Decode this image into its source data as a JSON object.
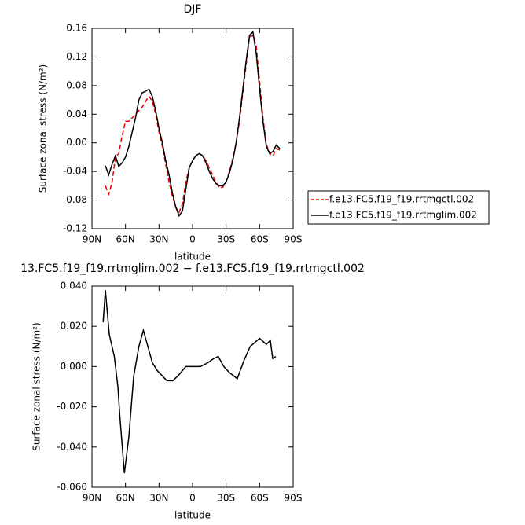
{
  "chart_data": [
    {
      "type": "line",
      "title": "DJF",
      "xlabel": "latitude",
      "ylabel": "Surface zonal stress (N/m²)",
      "xlim": [
        90,
        -90
      ],
      "xticks": [
        {
          "value": 90,
          "label": "90N"
        },
        {
          "value": 60,
          "label": "60N"
        },
        {
          "value": 30,
          "label": "30N"
        },
        0,
        {
          "value": -30,
          "label": "30S"
        },
        {
          "value": -60,
          "label": "60S"
        },
        {
          "value": -90,
          "label": "90S"
        }
      ],
      "ylim": [
        -0.12,
        0.16
      ],
      "yticks": [
        0.16,
        0.12,
        0.08,
        0.04,
        {
          "value": 0,
          "label": "0.00"
        },
        -0.04,
        -0.08,
        -0.12
      ],
      "legend": "outside right",
      "x": [
        78,
        75,
        72,
        69,
        66,
        63,
        60,
        57,
        54,
        51,
        48,
        45,
        42,
        39,
        36,
        33,
        30,
        27,
        24,
        21,
        18,
        15,
        12,
        9,
        6,
        3,
        0,
        -3,
        -6,
        -9,
        -12,
        -15,
        -18,
        -21,
        -24,
        -27,
        -30,
        -33,
        -36,
        -39,
        -42,
        -45,
        -48,
        -51,
        -54,
        -57,
        -60,
        -63,
        -66,
        -69,
        -72,
        -75,
        -78
      ],
      "series": [
        {
          "name": "f.e13.FC5.f19_f19.rrtmgctl.002",
          "color": "#e00000",
          "line_style": "dashed",
          "values": [
            -0.06,
            -0.072,
            -0.055,
            -0.02,
            -0.015,
            0.01,
            0.03,
            0.03,
            0.035,
            0.04,
            0.045,
            0.05,
            0.058,
            0.065,
            0.058,
            0.04,
            0.015,
            -0.005,
            -0.03,
            -0.055,
            -0.075,
            -0.09,
            -0.097,
            -0.085,
            -0.055,
            -0.035,
            -0.025,
            -0.018,
            -0.015,
            -0.018,
            -0.025,
            -0.035,
            -0.045,
            -0.055,
            -0.063,
            -0.062,
            -0.055,
            -0.04,
            -0.022,
            0.0,
            0.03,
            0.07,
            0.11,
            0.148,
            0.15,
            0.135,
            0.085,
            0.035,
            -0.002,
            -0.015,
            -0.018,
            -0.008,
            -0.01
          ]
        },
        {
          "name": "f.e13.FC5.f19_f19.rrtmglim.002",
          "color": "#000000",
          "line_style": "solid",
          "values": [
            -0.032,
            -0.045,
            -0.03,
            -0.018,
            -0.033,
            -0.028,
            -0.02,
            -0.005,
            0.015,
            0.035,
            0.06,
            0.07,
            0.072,
            0.075,
            0.065,
            0.045,
            0.02,
            0.0,
            -0.025,
            -0.045,
            -0.07,
            -0.09,
            -0.102,
            -0.095,
            -0.065,
            -0.035,
            -0.025,
            -0.018,
            -0.015,
            -0.018,
            -0.028,
            -0.04,
            -0.05,
            -0.057,
            -0.06,
            -0.06,
            -0.055,
            -0.042,
            -0.025,
            0.0,
            0.035,
            0.075,
            0.115,
            0.15,
            0.155,
            0.125,
            0.075,
            0.03,
            -0.005,
            -0.015,
            -0.012,
            -0.003,
            -0.008
          ]
        }
      ]
    },
    {
      "type": "line",
      "title": "13.FC5.f19_f19.rrtmglim.002 − f.e13.FC5.f19_f19.rrtmgctl.002",
      "xlabel": "latitude",
      "ylabel": "Surface zonal stress (N/m²)",
      "xlim": [
        90,
        -90
      ],
      "xticks": [
        {
          "value": 90,
          "label": "90N"
        },
        {
          "value": 60,
          "label": "60N"
        },
        {
          "value": 30,
          "label": "30N"
        },
        0,
        {
          "value": -30,
          "label": "30S"
        },
        {
          "value": -60,
          "label": "60S"
        },
        {
          "value": -90,
          "label": "90S"
        }
      ],
      "ylim": [
        -0.06,
        0.04
      ],
      "yticks": [
        {
          "value": 0.04,
          "label": "0.040"
        },
        {
          "value": 0.02,
          "label": "0.020"
        },
        {
          "value": 0,
          "label": "0.000"
        },
        {
          "value": -0.02,
          "label": "-0.020"
        },
        {
          "value": -0.04,
          "label": "-0.040"
        },
        {
          "value": -0.06,
          "label": "-0.060"
        }
      ],
      "color": "#000000",
      "x": [
        80,
        78,
        74.5,
        70,
        66.8,
        65,
        61,
        57,
        52.7,
        48,
        44,
        40,
        36,
        31.6,
        23,
        17.6,
        12,
        6,
        0,
        -7,
        -14,
        -19,
        -23,
        -28,
        -33,
        -40,
        -46,
        -51.6,
        -60,
        -66,
        -69.6,
        -71.7,
        -74.5
      ],
      "values": [
        0.022,
        0.038,
        0.016,
        0.005,
        -0.01,
        -0.025,
        -0.053,
        -0.035,
        -0.005,
        0.01,
        0.018,
        0.01,
        0.002,
        -0.002,
        -0.007,
        -0.007,
        -0.004,
        0.0,
        0.0,
        0.0,
        0.002,
        0.004,
        0.005,
        0.0,
        -0.003,
        -0.006,
        0.003,
        0.01,
        0.014,
        0.011,
        0.013,
        0.004,
        0.005
      ]
    }
  ]
}
